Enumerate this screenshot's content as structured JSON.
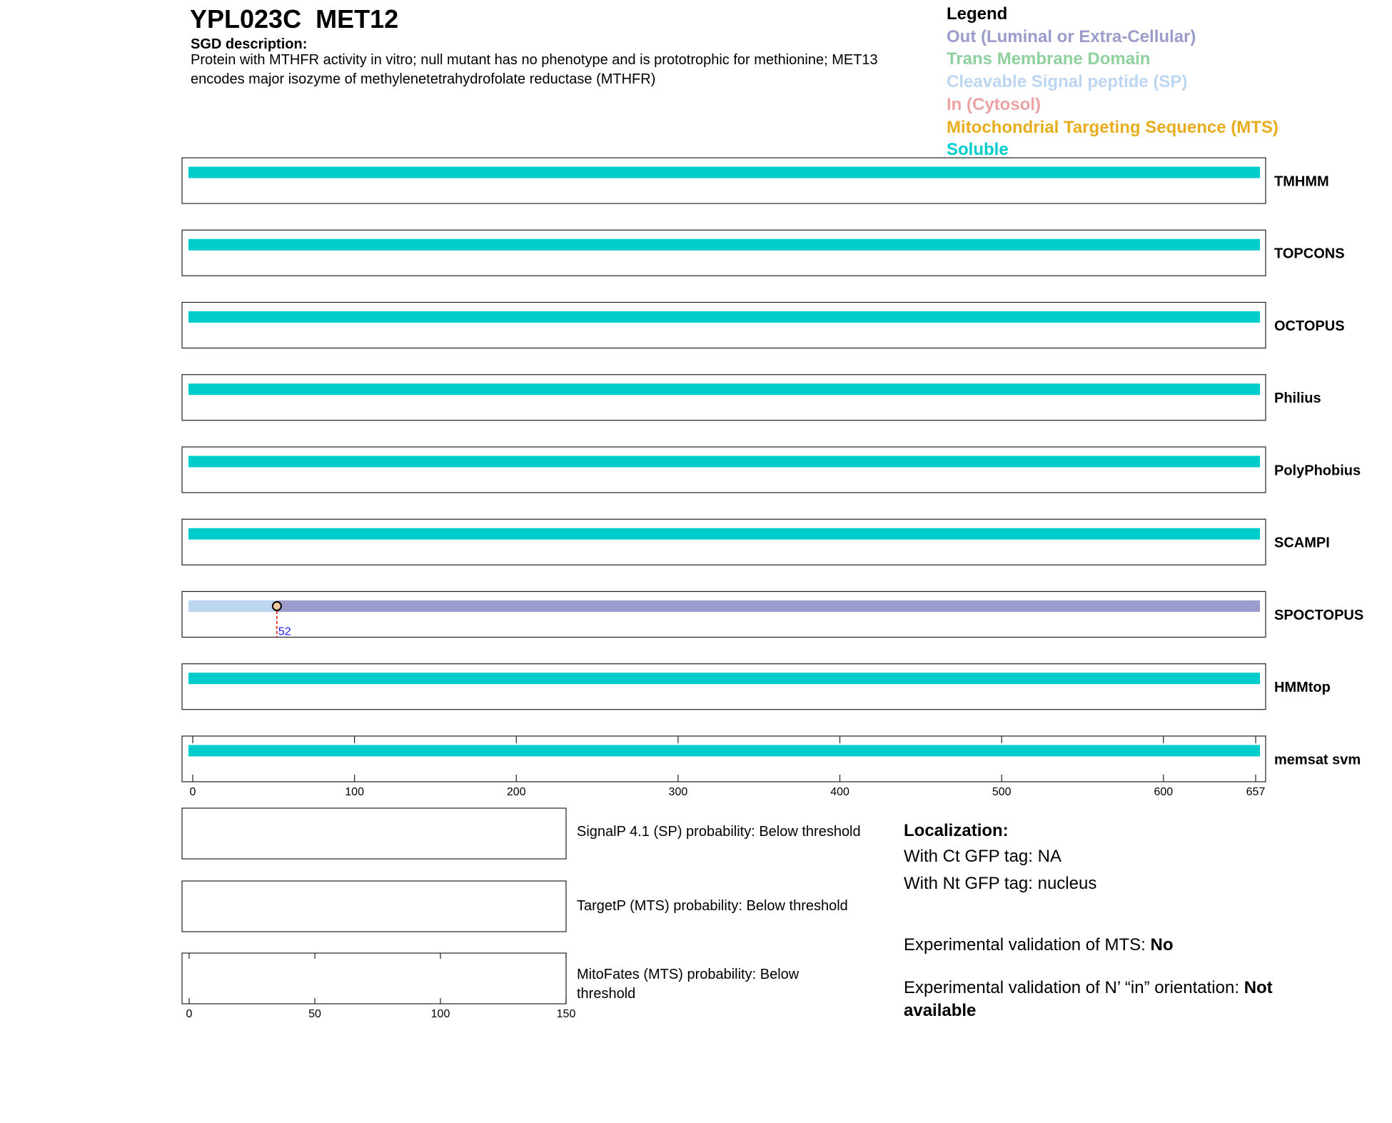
{
  "header": {
    "title": "YPL023C  MET12",
    "description_label": "SGD description:",
    "description": "Protein with MTHFR activity in vitro; null mutant has no phenotype and is prototrophic for methionine; MET13 encodes major isozyme of methylenetetrahydrofolate reductase (MTHFR)"
  },
  "legend": {
    "title": "Legend",
    "items": [
      {
        "label": "Out (Luminal or Extra-Cellular)",
        "color": "#9c9ccc"
      },
      {
        "label": "Trans Membrane Domain",
        "color": "#8fd19e"
      },
      {
        "label": "Cleavable Signal peptide (SP)",
        "color": "#bcd6f2"
      },
      {
        "label": "In (Cytosol)",
        "color": "#eba3a3"
      },
      {
        "label": "Mitochondrial Targeting Sequence (MTS)",
        "color": "#e8ad1e"
      },
      {
        "label": "Soluble",
        "color": "#00cccc"
      }
    ]
  },
  "chart_data": {
    "type": "topology",
    "xlim": [
      0,
      657
    ],
    "xticks": [
      0,
      100,
      200,
      300,
      400,
      500,
      600,
      657
    ],
    "tracks": [
      {
        "name": "TMHMM",
        "segments": [
          {
            "start": 0,
            "end": 657,
            "color": "#00cccc"
          }
        ]
      },
      {
        "name": "TOPCONS",
        "segments": [
          {
            "start": 0,
            "end": 657,
            "color": "#00cccc"
          }
        ]
      },
      {
        "name": "OCTOPUS",
        "segments": [
          {
            "start": 0,
            "end": 657,
            "color": "#00cccc"
          }
        ]
      },
      {
        "name": "Philius",
        "segments": [
          {
            "start": 0,
            "end": 657,
            "color": "#00cccc"
          }
        ]
      },
      {
        "name": "PolyPhobius",
        "segments": [
          {
            "start": 0,
            "end": 657,
            "color": "#00cccc"
          }
        ]
      },
      {
        "name": "SCAMPI",
        "segments": [
          {
            "start": 0,
            "end": 657,
            "color": "#00cccc"
          }
        ]
      },
      {
        "name": "SPOCTOPUS",
        "segments": [
          {
            "start": 0,
            "end": 52,
            "color": "#bcd6f2"
          },
          {
            "start": 52,
            "end": 657,
            "color": "#9c9ccc"
          }
        ],
        "cleavage_site": 52
      },
      {
        "name": "HMMtop",
        "segments": [
          {
            "start": 0,
            "end": 657,
            "color": "#00cccc"
          }
        ]
      },
      {
        "name": "memsat svm",
        "segments": [
          {
            "start": 0,
            "end": 657,
            "color": "#00cccc"
          }
        ]
      }
    ]
  },
  "probability_charts": {
    "xlim": [
      0,
      150
    ],
    "xticks": [
      0,
      50,
      100,
      150
    ],
    "labels": [
      "SignalP 4.1 (SP) probability: Below threshold",
      "TargetP (MTS) probability: Below threshold",
      "MitoFates (MTS) probability: Below threshold"
    ]
  },
  "localization": {
    "title": "Localization:",
    "ct_gfp": "With Ct GFP tag: NA",
    "nt_gfp": "With Nt GFP tag: nucleus",
    "mts_validation": {
      "label": "Experimental validation of MTS:",
      "value": "No"
    },
    "orientation_validation": {
      "label": "Experimental validation of N’ “in” orientation:",
      "value": "Not available"
    }
  }
}
